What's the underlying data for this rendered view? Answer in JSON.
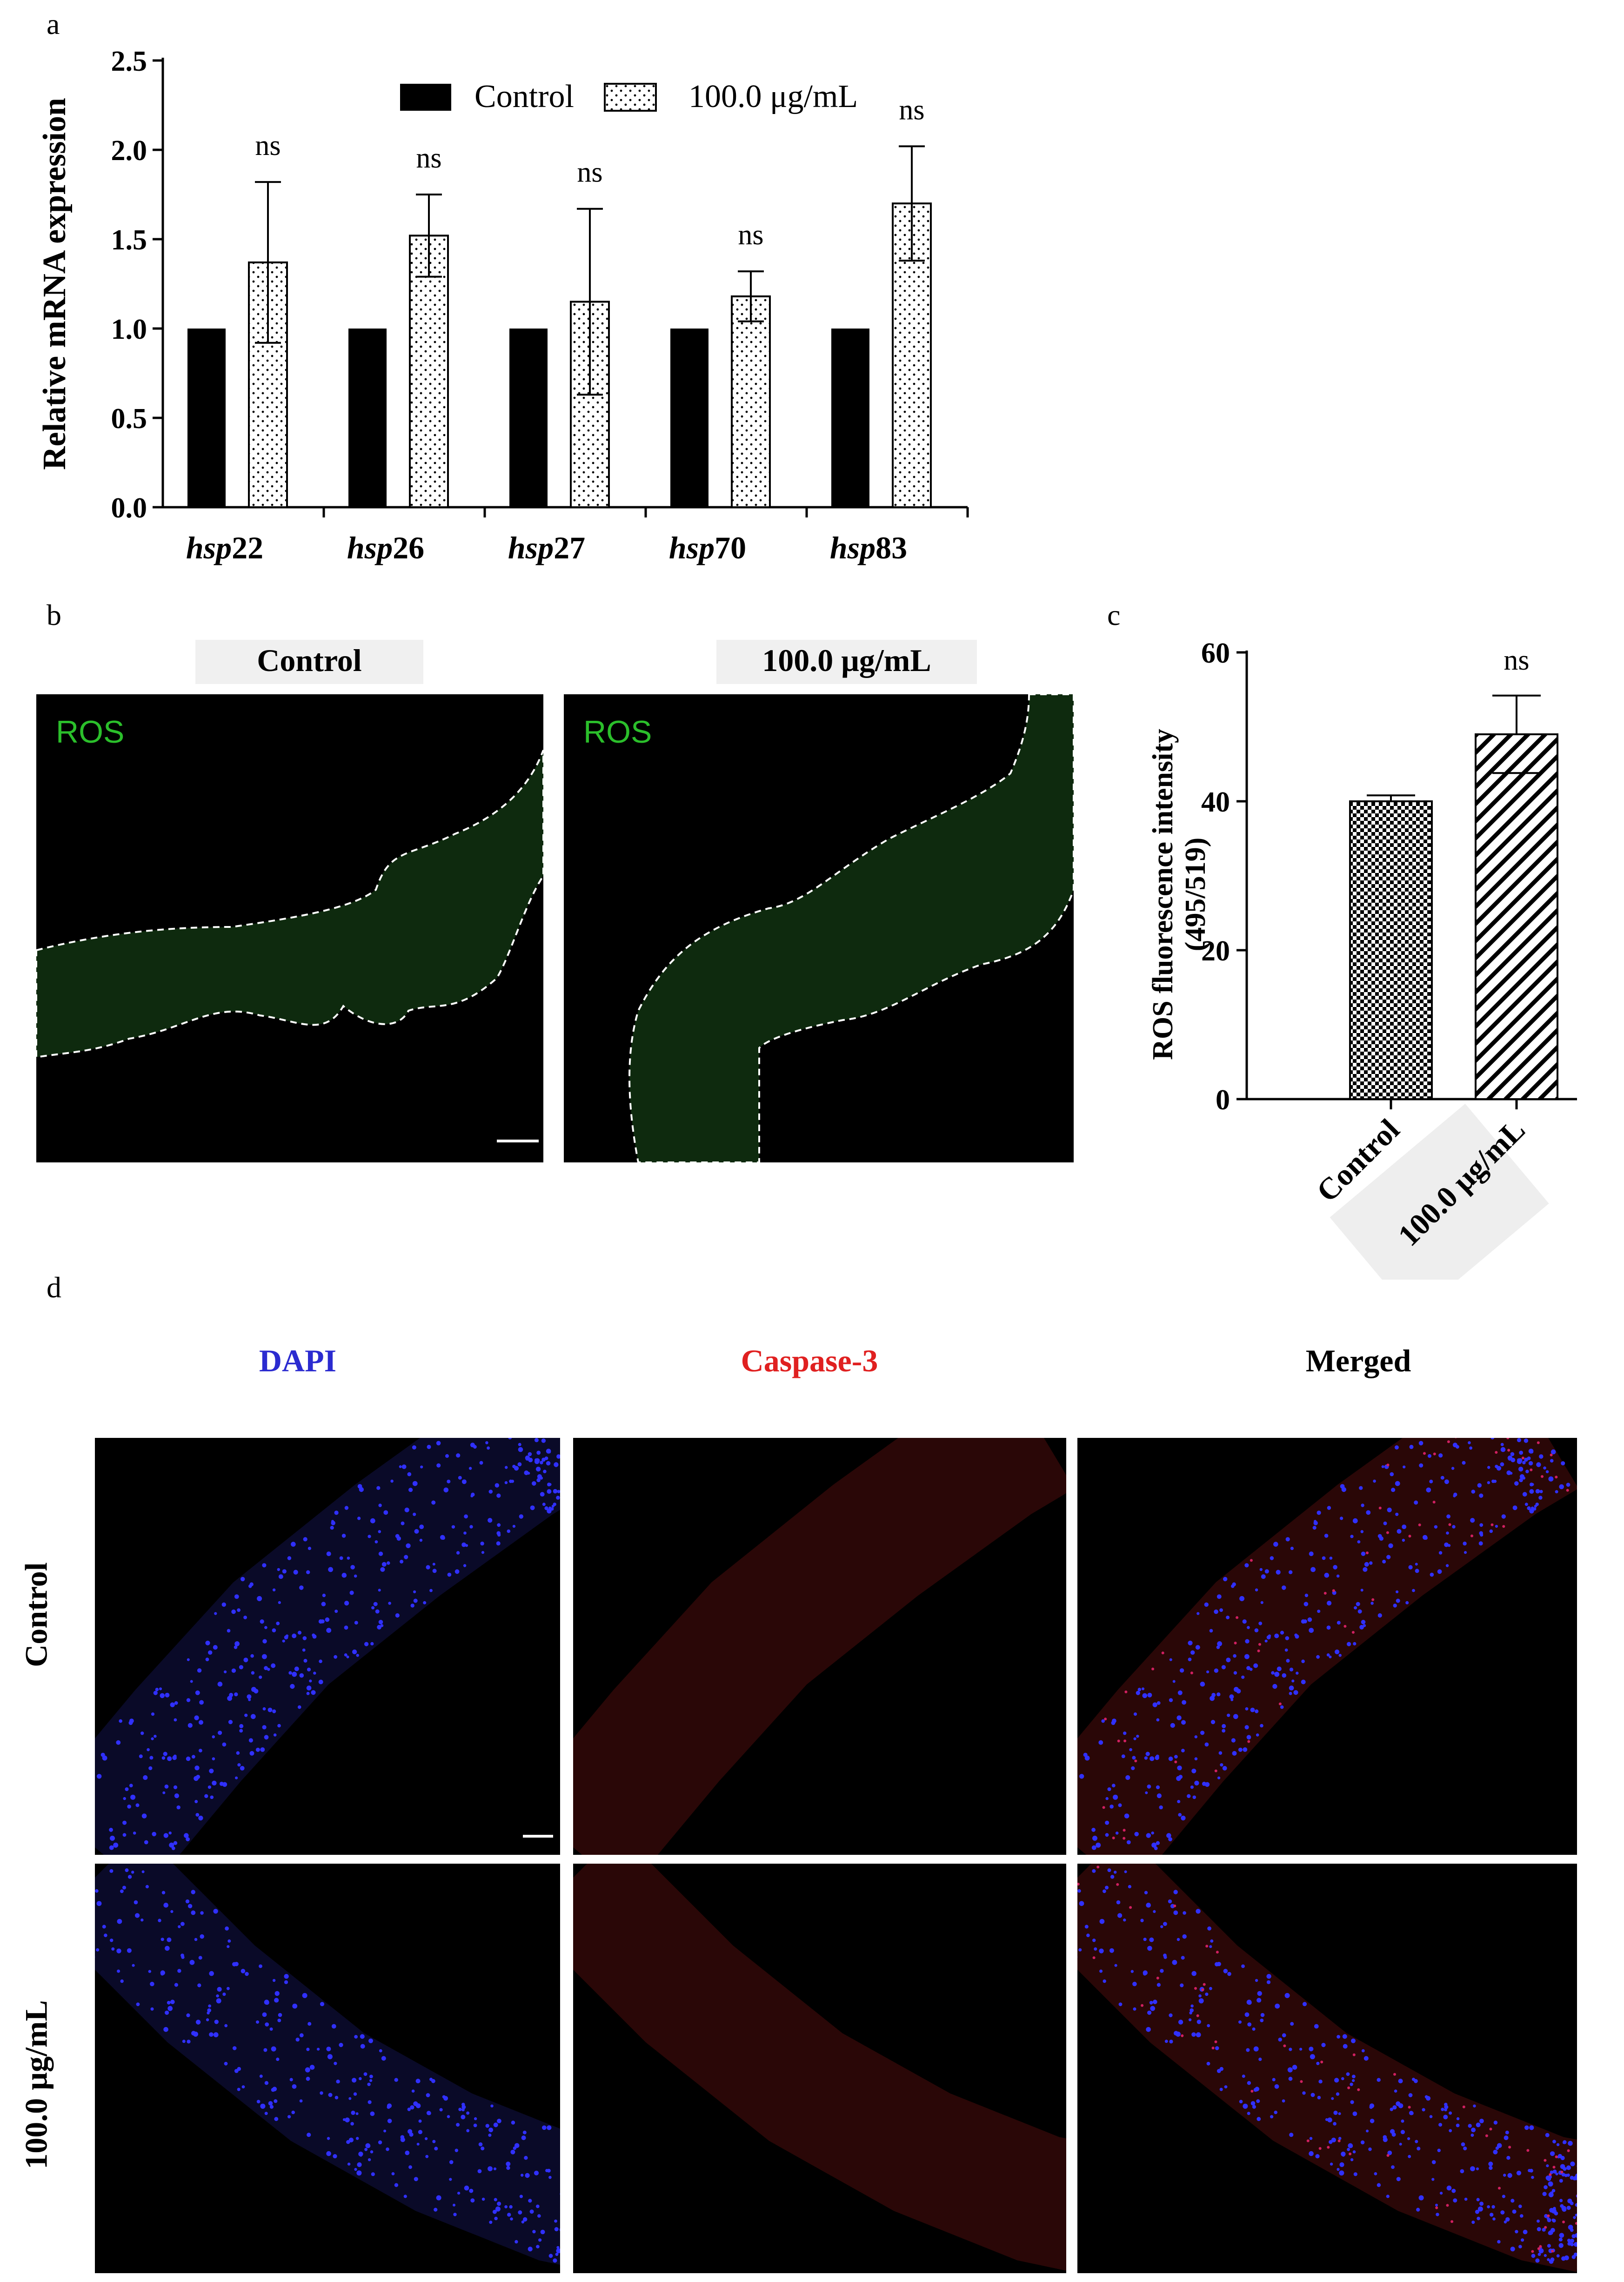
{
  "panels": {
    "a": "a",
    "b": "b",
    "c": "c",
    "d": "d"
  },
  "colors": {
    "black": "#000000",
    "ros_green": "#2bbf2b",
    "dapi_blue": "#2b2bd0",
    "caspase_red": "#e02020",
    "tissue_green": "#0e2a0e",
    "tissue_red": "#2a0606"
  },
  "chart_data": [
    {
      "id": "a",
      "type": "bar",
      "ylabel": "Relative mRNA expression",
      "ylim": [
        0,
        2.5
      ],
      "yticks": [
        0.0,
        0.5,
        1.0,
        1.5,
        2.0,
        2.5
      ],
      "ytick_labels": [
        "0.0",
        "0.5",
        "1.0",
        "1.5",
        "2.0",
        "2.5"
      ],
      "categories": [
        {
          "italic": "hsp",
          "number": "22"
        },
        {
          "italic": "hsp",
          "number": "26"
        },
        {
          "italic": "hsp",
          "number": "27"
        },
        {
          "italic": "hsp",
          "number": "70"
        },
        {
          "italic": "hsp",
          "number": "83"
        }
      ],
      "series": [
        {
          "name": "Control",
          "pattern": "solid-black",
          "values": [
            1.0,
            1.0,
            1.0,
            1.0,
            1.0
          ]
        },
        {
          "name": "100.0 μg/mL",
          "pattern": "dots",
          "values": [
            1.37,
            1.52,
            1.15,
            1.18,
            1.7
          ],
          "errors": [
            0.45,
            0.23,
            0.52,
            0.14,
            0.32
          ]
        }
      ],
      "annotations": [
        "ns",
        "ns",
        "ns",
        "ns",
        "ns"
      ],
      "legend": "top-center"
    },
    {
      "id": "c",
      "type": "bar",
      "ylabel_line1": "ROS fluorescence intensity",
      "ylabel_line2": "(495/519)",
      "ylim": [
        0,
        60
      ],
      "yticks": [
        0,
        20,
        40,
        60
      ],
      "ytick_labels": [
        "0",
        "20",
        "40",
        "60"
      ],
      "categories": [
        "Control",
        "100.0 μg/mL"
      ],
      "patterns": [
        "checker",
        "diagonal"
      ],
      "values": [
        40,
        49
      ],
      "errors": [
        0.8,
        5.2
      ],
      "annotation": "ns"
    }
  ],
  "panel_b": {
    "headers": [
      "Control",
      "100.0 μg/mL"
    ],
    "channel_label": "ROS"
  },
  "panel_d": {
    "columns": [
      "DAPI",
      "Caspase-3",
      "Merged"
    ],
    "rows": [
      "Control",
      "100.0 μg/mL"
    ]
  }
}
